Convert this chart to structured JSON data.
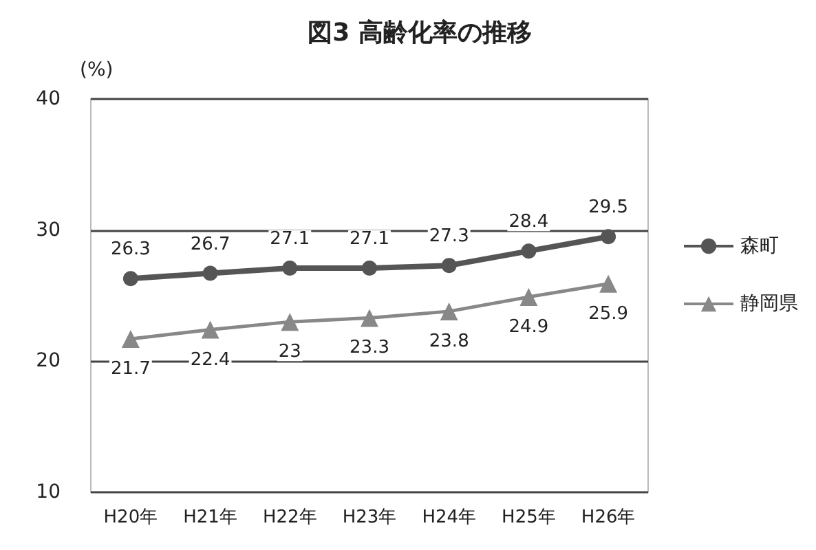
{
  "chart_data": {
    "type": "line",
    "title": "図3 高齢化率の推移",
    "ylabel": "(%)",
    "categories": [
      "H20年",
      "H21年",
      "H22年",
      "H23年",
      "H24年",
      "H25年",
      "H26年"
    ],
    "series": [
      {
        "name": "森町",
        "color": "#555555",
        "marker": "circle",
        "values": [
          26.3,
          26.7,
          27.1,
          27.1,
          27.3,
          28.4,
          29.5
        ]
      },
      {
        "name": "静岡県",
        "color": "#888888",
        "marker": "triangle",
        "values": [
          21.7,
          22.4,
          23,
          23.3,
          23.8,
          24.9,
          25.9
        ]
      }
    ],
    "ylim": [
      10,
      40
    ],
    "yticks": [
      10,
      20,
      30,
      40
    ],
    "grid": "y",
    "legend": "right",
    "data_labels": true,
    "line_style": "solid"
  }
}
